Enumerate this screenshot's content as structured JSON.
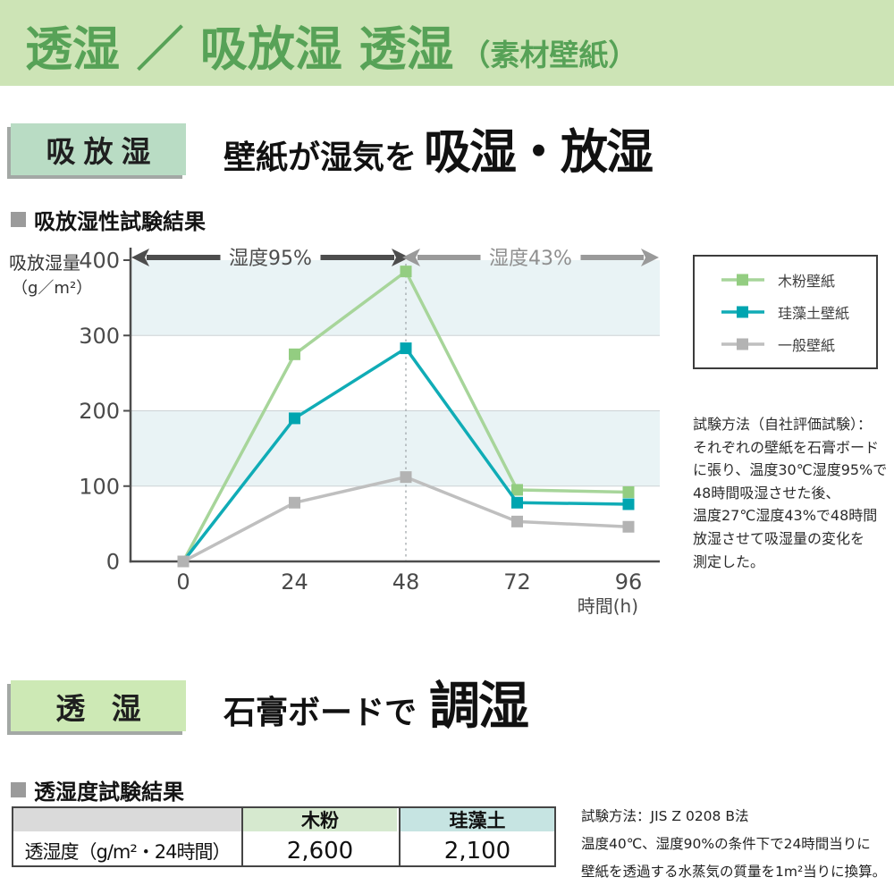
{
  "header": {
    "title": "透湿 ／ 吸放湿 透湿",
    "subtitle": "（素材壁紙）",
    "bg_color": "#cde4b6",
    "text_color": "#57a257"
  },
  "section1": {
    "tag": "吸放湿",
    "tag_bg": "#b9dcc4",
    "lead": "壁紙が湿気を",
    "headline": "吸湿・放湿",
    "result_heading": "吸放湿性試験結果",
    "method": "試験方法（自社評価試験）：\nそれぞれの壁紙を石膏ボード\nに張り、温度30℃湿度95%で\n48時間吸湿させた後、\n温度27℃湿度43%で48時間\n放湿させて吸湿量の変化を\n測定した。"
  },
  "chart_data": {
    "type": "line",
    "x": [
      0,
      24,
      48,
      72,
      96
    ],
    "series": [
      {
        "name": "木粉壁紙",
        "color": "#a7d59a",
        "marker": "#93cd81",
        "values": [
          0,
          275,
          385,
          95,
          92
        ]
      },
      {
        "name": "珪藻土壁紙",
        "color": "#10acb6",
        "marker": "#00a5b0",
        "values": [
          0,
          190,
          283,
          78,
          76
        ]
      },
      {
        "name": "一般壁紙",
        "color": "#bfbfbf",
        "marker": "#b3b3b3",
        "values": [
          0,
          78,
          112,
          53,
          46
        ]
      }
    ],
    "title": "吸放湿性試験結果",
    "ylabel_line1": "吸放湿量",
    "ylabel_line2": "（g／m²）",
    "xlabel": "時間(h)",
    "yticks": [
      0,
      100,
      200,
      300,
      400
    ],
    "ylim": [
      0,
      400
    ],
    "bands": [
      [
        100,
        200
      ],
      [
        300,
        400
      ]
    ],
    "band_color": "#e9f3f5",
    "grid": "horizontal",
    "legend_position": "right",
    "dashed_x": 48,
    "annotations": [
      {
        "text": "湿度95%",
        "range": [
          0,
          48
        ],
        "color": "#4d4d4d",
        "text_color": "#4d4d4d"
      },
      {
        "text": "湿度43%",
        "range": [
          48,
          96
        ],
        "color": "#9a9a9a",
        "text_color": "#8f8f8f"
      }
    ]
  },
  "section2": {
    "tag": "透 湿",
    "tag_bg": "#cde9b5",
    "lead": "石膏ボードで",
    "headline": "調湿",
    "result_heading": "透湿度試験結果",
    "method": "試験方法：JIS Z 0208 B法\n温度40℃、湿度90%の条件下で24時間当りに\n壁紙を透過する水蒸気の質量を1m²当りに換算。",
    "table": {
      "row_header": "透湿度（g/m²・24時間）",
      "columns": [
        "木粉",
        "珪藻土"
      ],
      "column_colors": [
        "#d6e9cf",
        "#c6e4e2"
      ],
      "values": [
        "2,600",
        "2,100"
      ],
      "header_blank_bg": "#dadada"
    }
  }
}
